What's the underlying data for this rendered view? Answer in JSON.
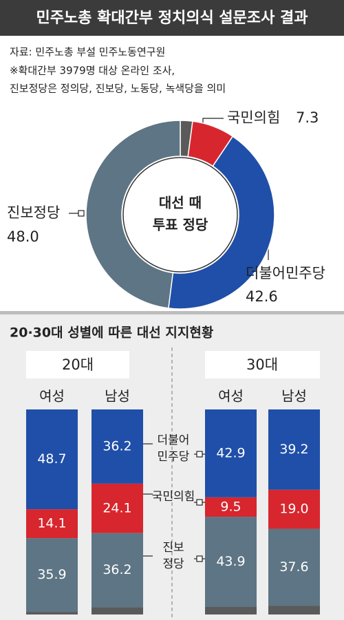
{
  "title": "민주노총 확대간부 정치의식 설문조사 결과",
  "notes": [
    "자료: 민주노총 부설 민주노동연구원",
    "※확대간부 3979명 대상 온라인 조사,",
    "진보정당은 정의당, 진보당, 노동당, 녹색당을 의미"
  ],
  "chart_data": [
    {
      "type": "donut",
      "center_label": [
        "대선 때",
        "투표 정당"
      ],
      "categories": [
        null,
        "국민의힘",
        "더불어민주당",
        "진보정당"
      ],
      "values": [
        2.1,
        7.3,
        42.6,
        48.0
      ],
      "value_labels": [
        null,
        "7.3",
        "42.6",
        "48.0"
      ],
      "colors": [
        "#5a5a5a",
        "#d7262e",
        "#1f4fa8",
        "#5d7584"
      ]
    },
    {
      "type": "stacked_bar",
      "title": "20·30대 성별에 따른 대선 지지현황",
      "groups": [
        "20대",
        "30대"
      ],
      "categories": [
        "여성",
        "남성",
        "여성",
        "남성"
      ],
      "ylim": [
        0,
        100
      ],
      "series": [
        {
          "name": "더불어\n민주당",
          "color": "#1f4fa8",
          "values": [
            48.7,
            36.2,
            42.9,
            39.2
          ]
        },
        {
          "name": "국민의힘",
          "color": "#d7262e",
          "values": [
            14.1,
            24.1,
            9.5,
            19.0
          ],
          "value_labels": [
            "14.1",
            "24.1",
            "9.5",
            "19.0"
          ]
        },
        {
          "name": "진보\n정당",
          "color": "#5d7584",
          "values": [
            35.9,
            36.2,
            43.9,
            37.6
          ]
        },
        {
          "name": null,
          "color": "#5a5a5a",
          "values": [
            1.3,
            3.5,
            3.7,
            4.2
          ]
        }
      ]
    }
  ]
}
